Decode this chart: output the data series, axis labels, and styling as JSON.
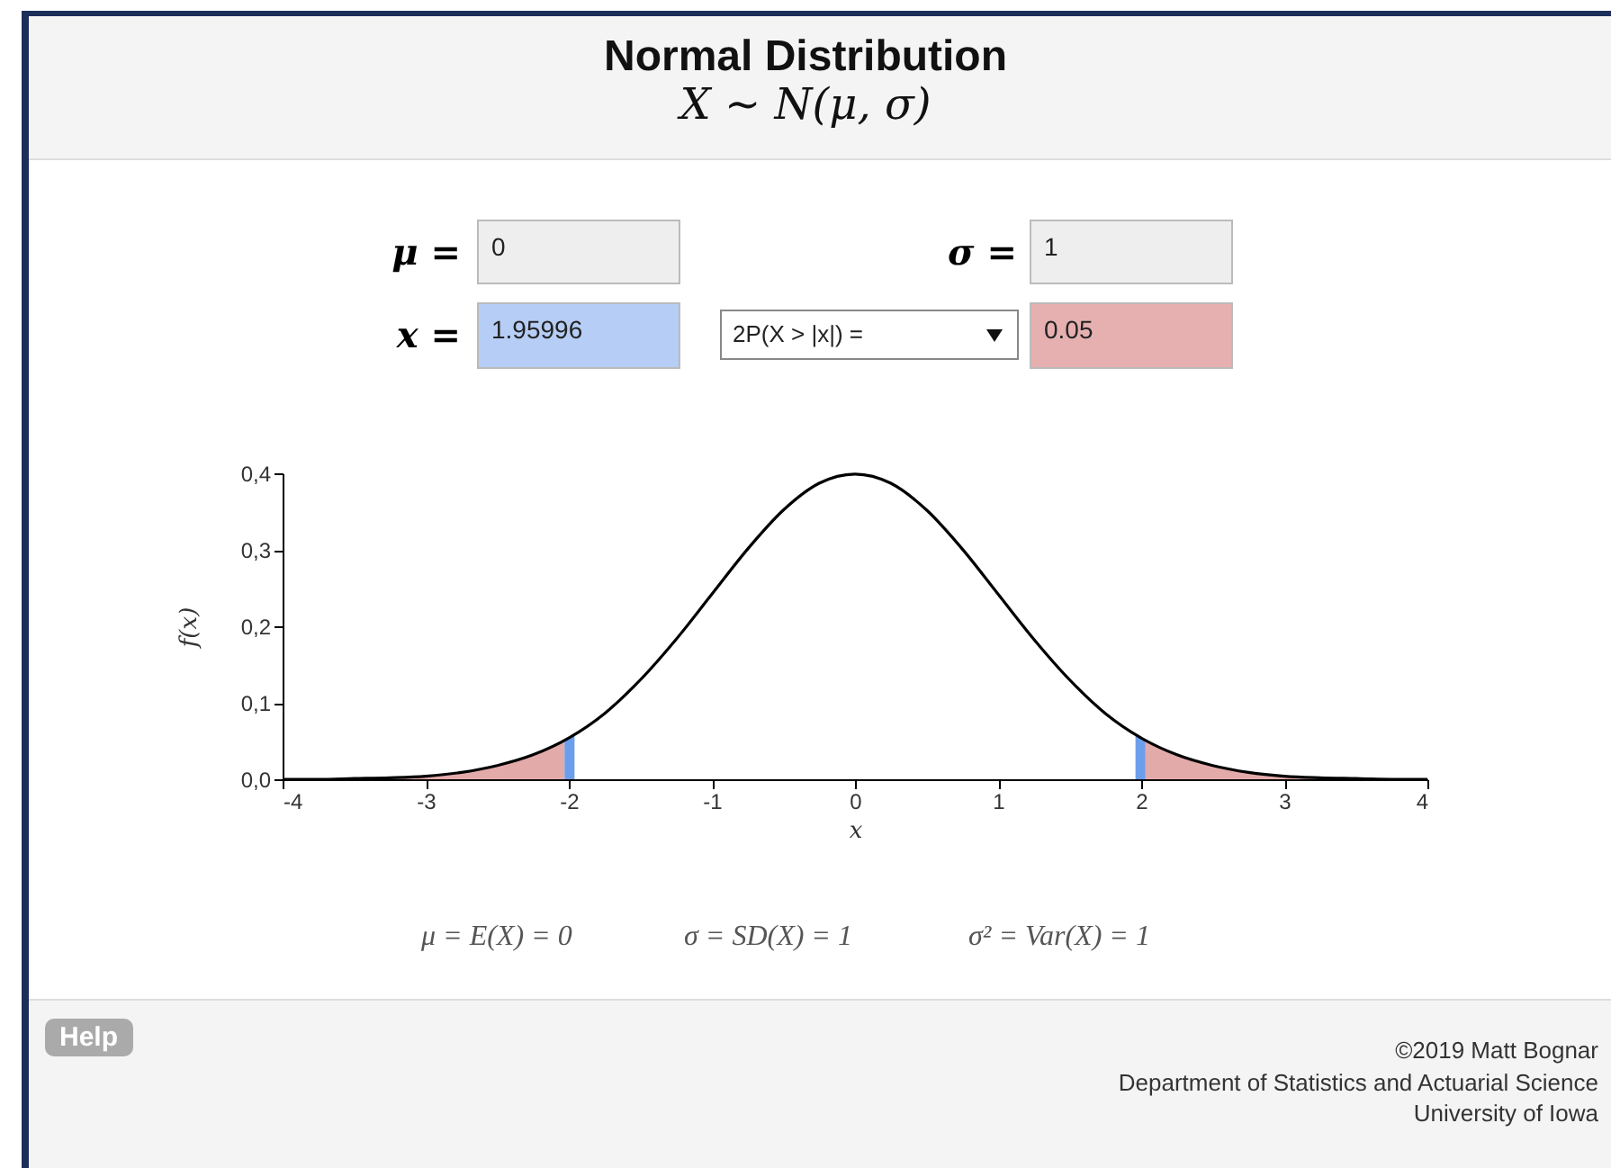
{
  "chart_data": {
    "type": "line",
    "title": "Normal Distribution",
    "subtitle": "X ∼ N(μ, σ)",
    "xlabel": "x",
    "ylabel": "f(x)",
    "xlim": [
      -4,
      4
    ],
    "xticks": [
      -4,
      -3,
      -2,
      -1,
      0,
      1,
      2,
      3,
      4
    ],
    "ylim": [
      0,
      0.4
    ],
    "yticks": [
      {
        "value": 0,
        "label": "0,0"
      },
      {
        "value": 0.1,
        "label": "0,1"
      },
      {
        "value": 0.2,
        "label": "0,2"
      },
      {
        "value": 0.3,
        "label": "0,3"
      },
      {
        "value": 0.4,
        "label": "0,4"
      }
    ],
    "grid": false,
    "series": [
      {
        "type": "area",
        "color": "#e3aaaa",
        "x": [
          -4,
          -3.5,
          -3,
          -2.75,
          -2.5,
          -2.25,
          -2.03
        ],
        "values": [
          0,
          0.001,
          0.004,
          0.009,
          0.018,
          0.032,
          0.051
        ]
      },
      {
        "type": "area",
        "color": "#e3aaaa",
        "x": [
          2.03,
          2.25,
          2.5,
          2.75,
          3,
          3.5,
          4
        ],
        "values": [
          0.051,
          0.032,
          0.018,
          0.009,
          0.004,
          0.001,
          0
        ]
      },
      {
        "type": "area",
        "color": "#6d9eeb",
        "x": [
          -2.03,
          -1.96
        ],
        "values": [
          0.051,
          0.058
        ]
      },
      {
        "type": "area",
        "color": "#6d9eeb",
        "x": [
          1.96,
          2.03
        ],
        "values": [
          0.058,
          0.051
        ]
      },
      {
        "type": "line",
        "color": "#000000",
        "x": [
          -4,
          -3.75,
          -3.5,
          -3.25,
          -3,
          -2.75,
          -2.5,
          -2.25,
          -2,
          -1.75,
          -1.5,
          -1.25,
          -1,
          -0.75,
          -0.5,
          -0.25,
          0,
          0.25,
          0.5,
          0.75,
          1,
          1.25,
          1.5,
          1.75,
          2,
          2.25,
          2.5,
          2.75,
          3,
          3.25,
          3.5,
          3.75,
          4
        ],
        "values": [
          0,
          0,
          0.001,
          0.002,
          0.004,
          0.009,
          0.018,
          0.032,
          0.054,
          0.086,
          0.13,
          0.183,
          0.242,
          0.301,
          0.352,
          0.387,
          0.399,
          0.387,
          0.352,
          0.301,
          0.242,
          0.183,
          0.13,
          0.086,
          0.054,
          0.032,
          0.018,
          0.009,
          0.004,
          0.002,
          0.001,
          0,
          0
        ]
      }
    ],
    "annotations": [
      "μ =",
      "0",
      "σ =",
      "1",
      "x =",
      "1.95996",
      "2P(X > |x|) =",
      "0.05",
      "μ = E(X) = 0",
      "σ = SD(X) = 1",
      "σ² = Var(X) = 1",
      "Help",
      "©2019 Matt Bognar",
      "Department of Statistics and Actuarial Science",
      "University of Iowa"
    ]
  }
}
